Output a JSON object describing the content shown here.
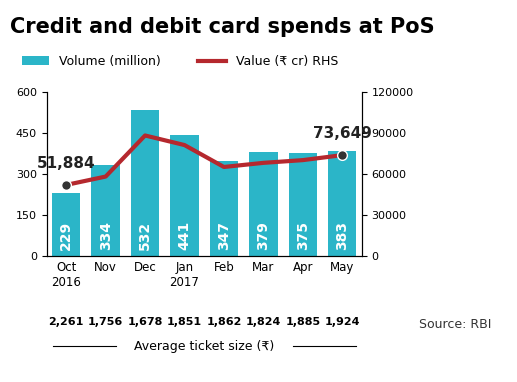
{
  "chart_data": {
    "type": "bar",
    "title": "Credit and debit card spends at PoS",
    "categories": [
      "Oct\n2016",
      "Nov",
      "Dec",
      "Jan\n2017",
      "Feb",
      "Mar",
      "Apr",
      "May"
    ],
    "series": [
      {
        "name": "Volume (million)",
        "type": "bar",
        "color": "#2bb5c8",
        "values": [
          229,
          334,
          532,
          441,
          347,
          379,
          375,
          383
        ]
      },
      {
        "name": "Value (₹ cr) RHS",
        "type": "line",
        "color": "#b5282e",
        "axis": "y2",
        "values": [
          51884,
          58000,
          88000,
          81000,
          65000,
          68000,
          70000,
          73649
        ],
        "value_labels": [
          "51,884",
          null,
          null,
          null,
          null,
          null,
          null,
          "73,649"
        ]
      }
    ],
    "data_labels": true,
    "ylim": [
      0,
      600
    ],
    "yticks": [
      0,
      150,
      300,
      450,
      600
    ],
    "y2lim": [
      0,
      120000
    ],
    "y2ticks": [
      0,
      30000,
      60000,
      90000,
      120000
    ],
    "grid": false,
    "legend": "upper left",
    "average_ticket_size": {
      "label": "Average ticket size (₹)",
      "values": [
        2261,
        1756,
        1678,
        1851,
        1862,
        1824,
        1885,
        1924
      ],
      "value_labels": [
        "2,261",
        "1,756",
        "1,678",
        "1,851",
        "1,862",
        "1,824",
        "1,885",
        "1,924"
      ]
    },
    "source": "Source: RBI"
  }
}
